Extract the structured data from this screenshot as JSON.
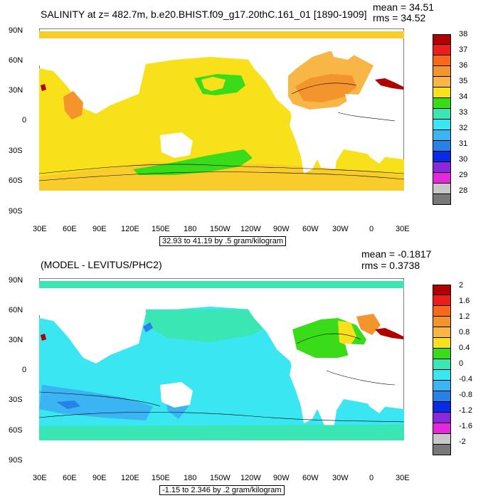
{
  "panel_top": {
    "title": "SALINITY at z= 482.7m, b.e20.BHIST.f09_g17.20thC.161_01 [1890-1909]",
    "mean_label": "mean = 34.51",
    "rms_label": "rms = 34.52",
    "info": "32.93 to 41.19 by .5 gram/kilogram",
    "lat_labels": [
      "90N",
      "60N",
      "30N",
      "0",
      "30S",
      "60S",
      "90S"
    ],
    "lon_labels": [
      "30E",
      "60E",
      "90E",
      "120E",
      "150E",
      "180",
      "150W",
      "120W",
      "90W",
      "60W",
      "30W",
      "0",
      "30E"
    ],
    "colorbar": {
      "labels": [
        "38",
        "37",
        "36",
        "35",
        "34",
        "33",
        "32",
        "31",
        "30",
        "29",
        "28"
      ],
      "colors": [
        "#b00000",
        "#ee1c1c",
        "#f86a1a",
        "#f3952c",
        "#f8b647",
        "#f8e11a",
        "#3adc1a",
        "#3ae6b4",
        "#3ae6f2",
        "#3ab4f2",
        "#2882e6",
        "#0a2ae6",
        "#8c28dc",
        "#e628dc",
        "#c8c8c8",
        "#787878"
      ]
    }
  },
  "panel_bottom": {
    "title": "(MODEL - LEVITUS/PHC2)",
    "mean_label": "mean = -0.1817",
    "rms_label": "rms = 0.3738",
    "info": "-1.15 to 2.346 by .2 gram/kilogram",
    "lat_labels": [
      "90N",
      "60N",
      "30N",
      "0",
      "30S",
      "60S",
      "90S"
    ],
    "lon_labels": [
      "30E",
      "60E",
      "90E",
      "120E",
      "150E",
      "180",
      "150W",
      "120W",
      "90W",
      "60W",
      "30W",
      "0",
      "30E"
    ],
    "colorbar": {
      "labels": [
        "2",
        "1.6",
        "1.2",
        "0.8",
        "0.4",
        "0",
        "-0.4",
        "-0.8",
        "-1.2",
        "-1.6",
        "-2"
      ],
      "colors": [
        "#b00000",
        "#ee1c1c",
        "#f86a1a",
        "#f3952c",
        "#f8b647",
        "#f8e11a",
        "#3adc1a",
        "#3ae6b4",
        "#3ae6f2",
        "#3ab4f2",
        "#2882e6",
        "#0a2ae6",
        "#8c28dc",
        "#e628dc",
        "#c8c8c8",
        "#787878"
      ]
    }
  },
  "palette": {
    "land": "#ffffff",
    "salty_orange": "#f3952c",
    "yellow": "#f8e11a",
    "gold": "#f8cc2a",
    "green": "#3adc1a",
    "aqua": "#3ae6f2",
    "cyan_green": "#3ae6b4",
    "light_blue": "#3ab4f2",
    "mid_blue": "#2882e6",
    "dark_red": "#b00000"
  }
}
